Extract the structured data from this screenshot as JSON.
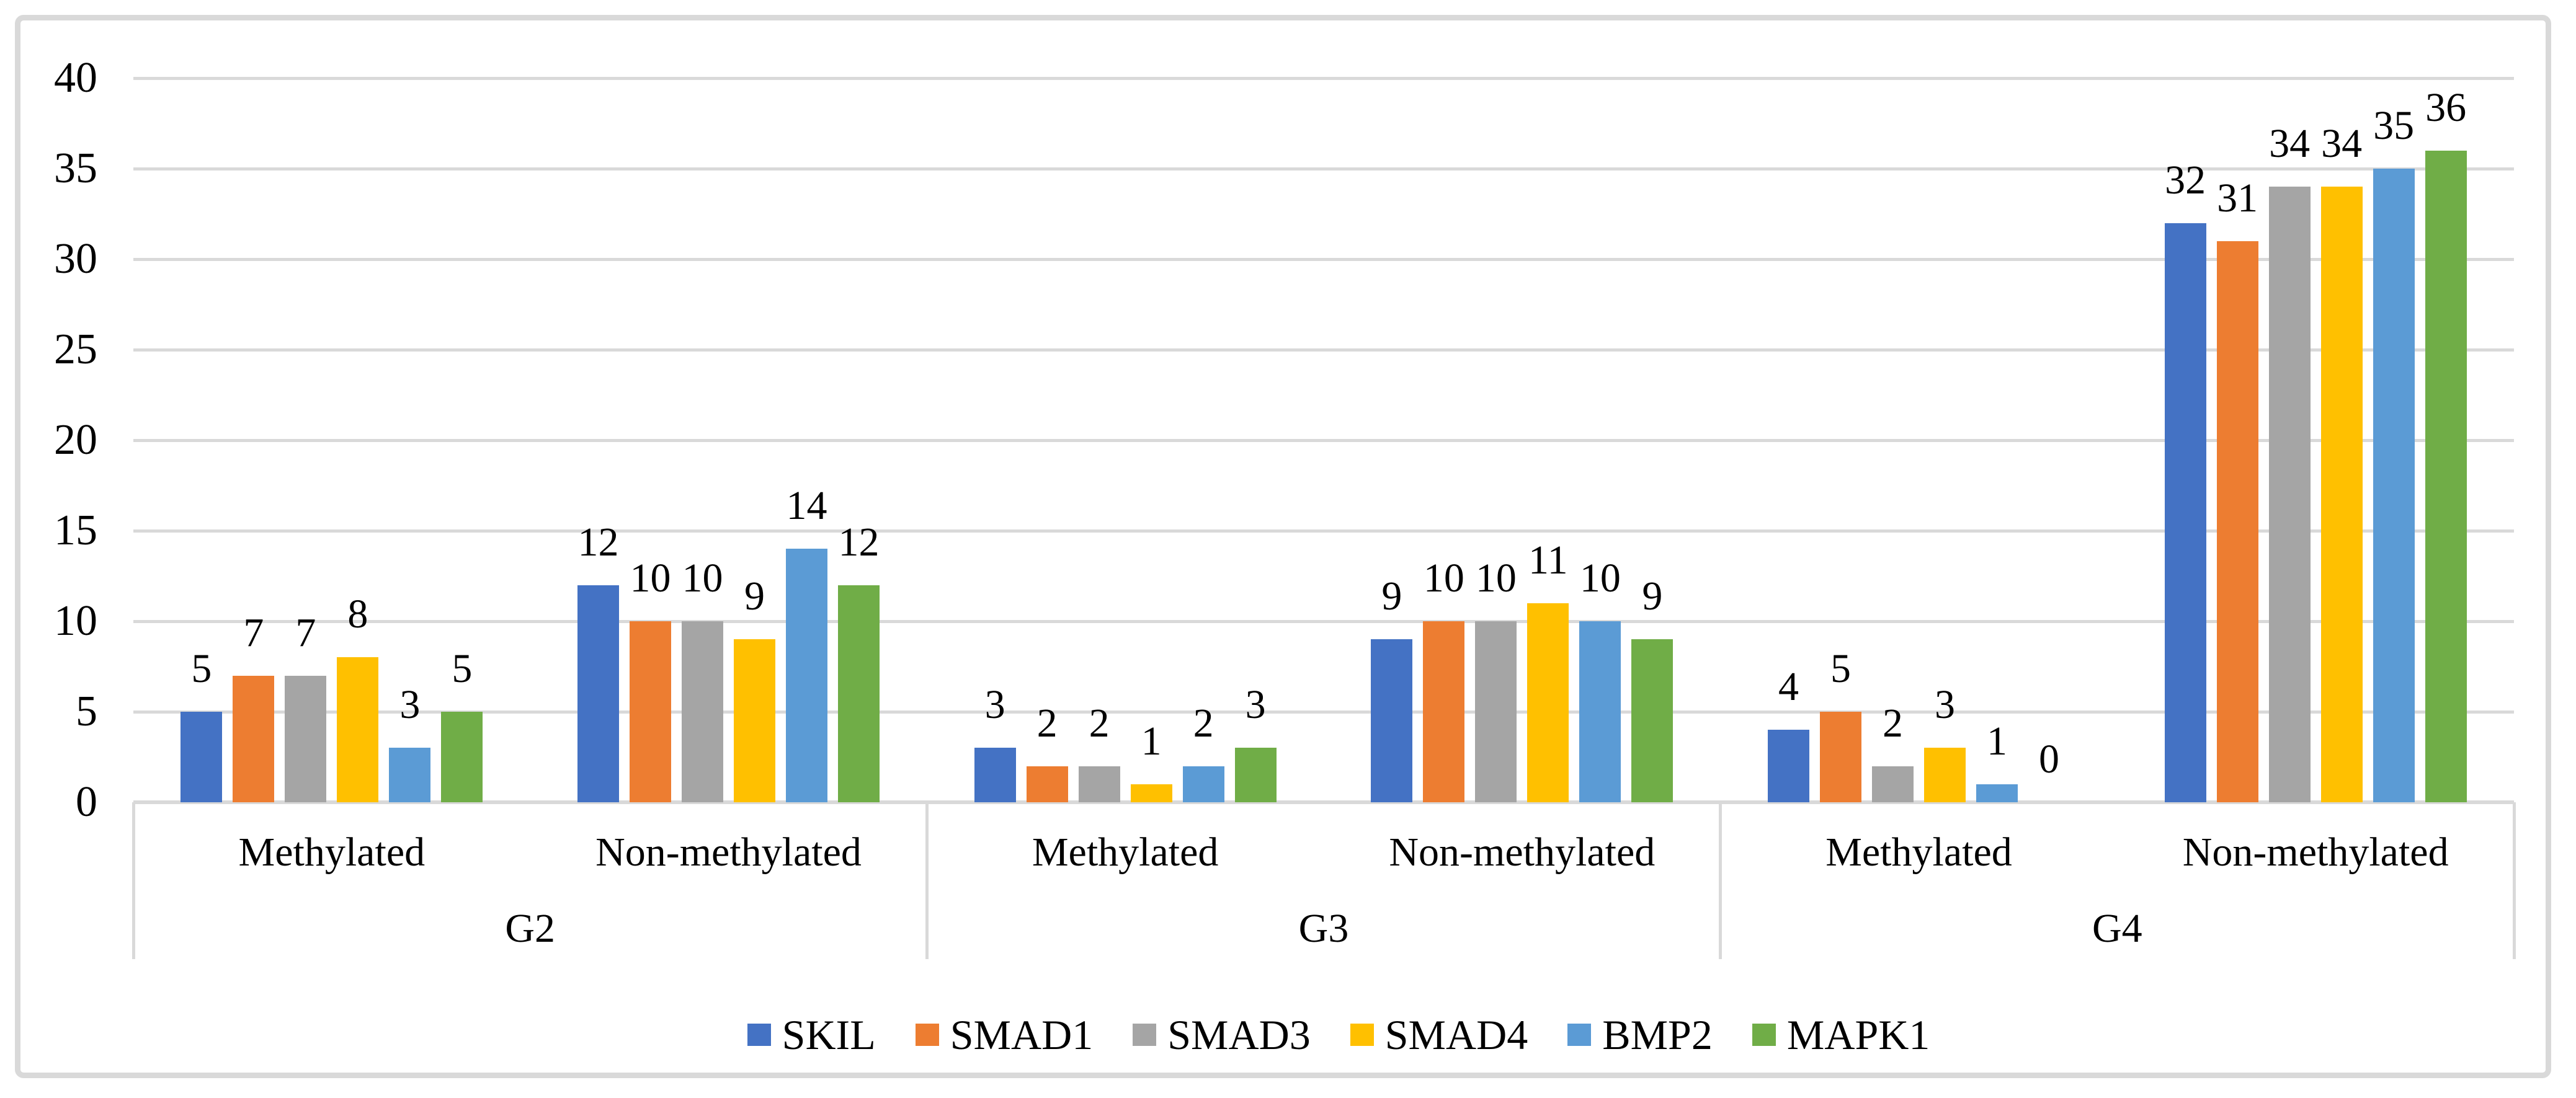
{
  "figure": {
    "background_color": "#FFFFFF",
    "border_color": "#D9D9D9",
    "gridline_color": "#D9D9D9",
    "text_color": "#000000"
  },
  "chart_data": {
    "type": "bar",
    "title": "",
    "xlabel": "",
    "ylabel": "",
    "grid": true,
    "data_labels": true,
    "legend_position": "bottom",
    "y_axis": {
      "min": 0,
      "max": 40,
      "step": 5,
      "tick_labels": [
        "0",
        "5",
        "10",
        "15",
        "20",
        "25",
        "30",
        "35",
        "40"
      ]
    },
    "groups": [
      {
        "label": "G2",
        "subcategories": [
          {
            "label": "Methylated",
            "values": [
              5,
              7,
              7,
              8,
              3,
              5
            ]
          },
          {
            "label": "Non-methylated",
            "values": [
              12,
              10,
              10,
              9,
              14,
              12
            ]
          }
        ]
      },
      {
        "label": "G3",
        "subcategories": [
          {
            "label": "Methylated",
            "values": [
              3,
              2,
              2,
              1,
              2,
              3
            ]
          },
          {
            "label": "Non-methylated",
            "values": [
              9,
              10,
              10,
              11,
              10,
              9
            ]
          }
        ]
      },
      {
        "label": "G4",
        "subcategories": [
          {
            "label": "Methylated",
            "values": [
              4,
              5,
              2,
              3,
              1,
              0
            ]
          },
          {
            "label": "Non-methylated",
            "values": [
              32,
              31,
              34,
              34,
              35,
              36
            ]
          }
        ]
      }
    ],
    "series": [
      {
        "name": "SKIL",
        "color": "#4472C4",
        "values": [
          5,
          12,
          3,
          9,
          4,
          32
        ]
      },
      {
        "name": "SMAD1",
        "color": "#ED7D31",
        "values": [
          7,
          10,
          2,
          10,
          5,
          31
        ]
      },
      {
        "name": "SMAD3",
        "color": "#A5A5A5",
        "values": [
          7,
          10,
          2,
          10,
          2,
          34
        ]
      },
      {
        "name": "SMAD4",
        "color": "#FFC000",
        "values": [
          8,
          9,
          1,
          11,
          3,
          34
        ]
      },
      {
        "name": "BMP2",
        "color": "#5B9BD5",
        "values": [
          3,
          14,
          2,
          10,
          1,
          35
        ]
      },
      {
        "name": "MAPK1",
        "color": "#70AD47",
        "values": [
          5,
          12,
          3,
          9,
          0,
          36
        ]
      }
    ]
  }
}
